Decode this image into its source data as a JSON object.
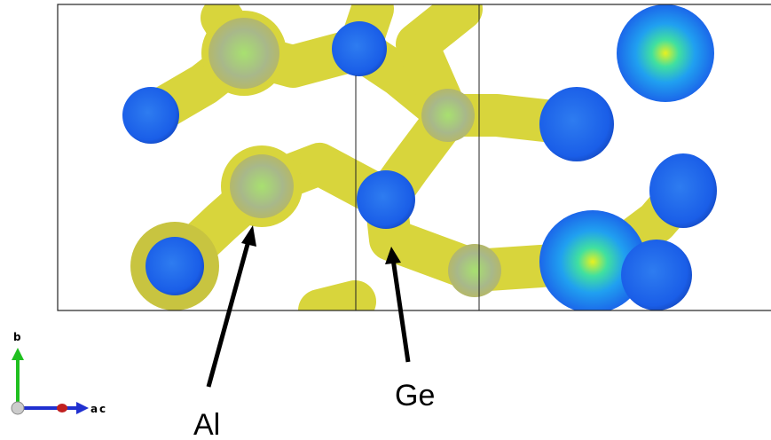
{
  "labels": {
    "al": "Al",
    "ge": "Ge"
  },
  "axes": {
    "b": "b",
    "a": "a",
    "c": "c"
  }
}
